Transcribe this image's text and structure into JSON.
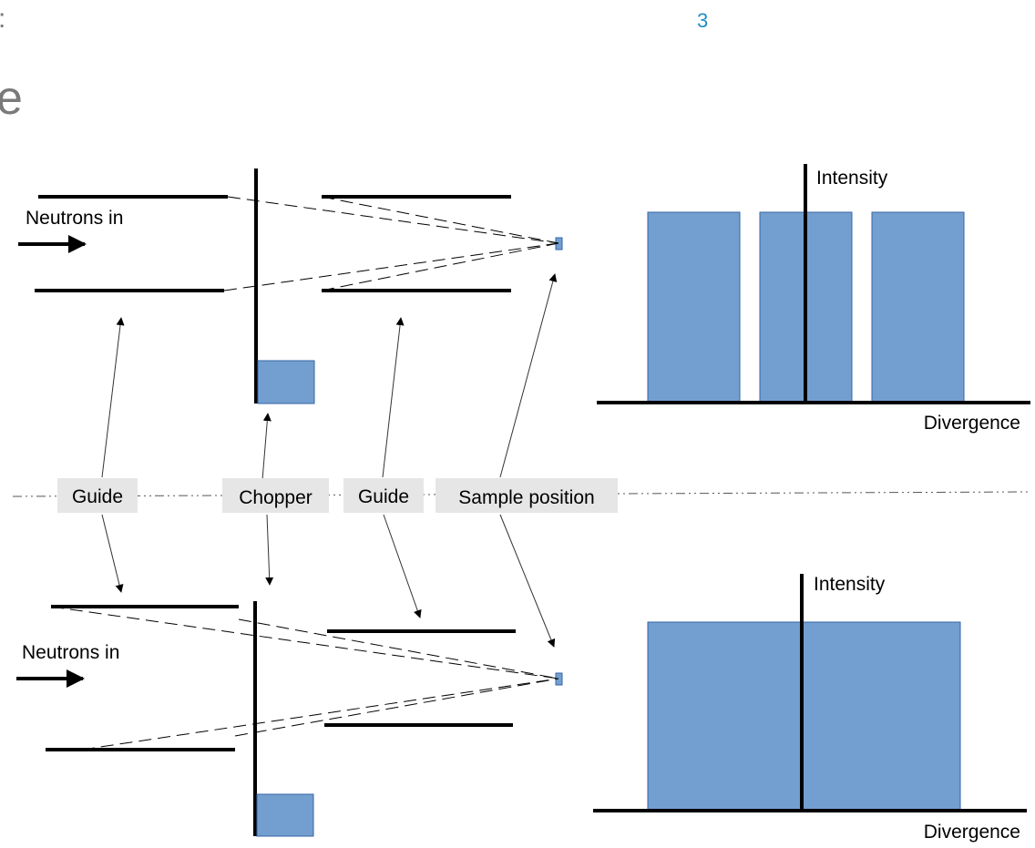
{
  "header": {
    "left_fragment": ":",
    "page_number": "3",
    "title_fragment": "e",
    "page_number_color": "#1f8ec6",
    "title_color": "#7a7a7a"
  },
  "labels": {
    "neutrons_in_top": "Neutrons in",
    "neutrons_in_bottom": "Neutrons in",
    "guide_1": "Guide",
    "chopper": "Chopper",
    "guide_2": "Guide",
    "sample_position": "Sample position"
  },
  "plot_top": {
    "y_axis_label": "Intensity",
    "x_axis_label": "Divergence",
    "bar_count": 3
  },
  "plot_bottom": {
    "y_axis_label": "Intensity",
    "x_axis_label": "Divergence",
    "bar_count": 1
  },
  "colors": {
    "fill_blue": "#729fcf",
    "fill_blue_stroke": "#3465a4",
    "label_box": "#e6e6e6",
    "line": "#000000",
    "annotation_line": "#333333"
  }
}
